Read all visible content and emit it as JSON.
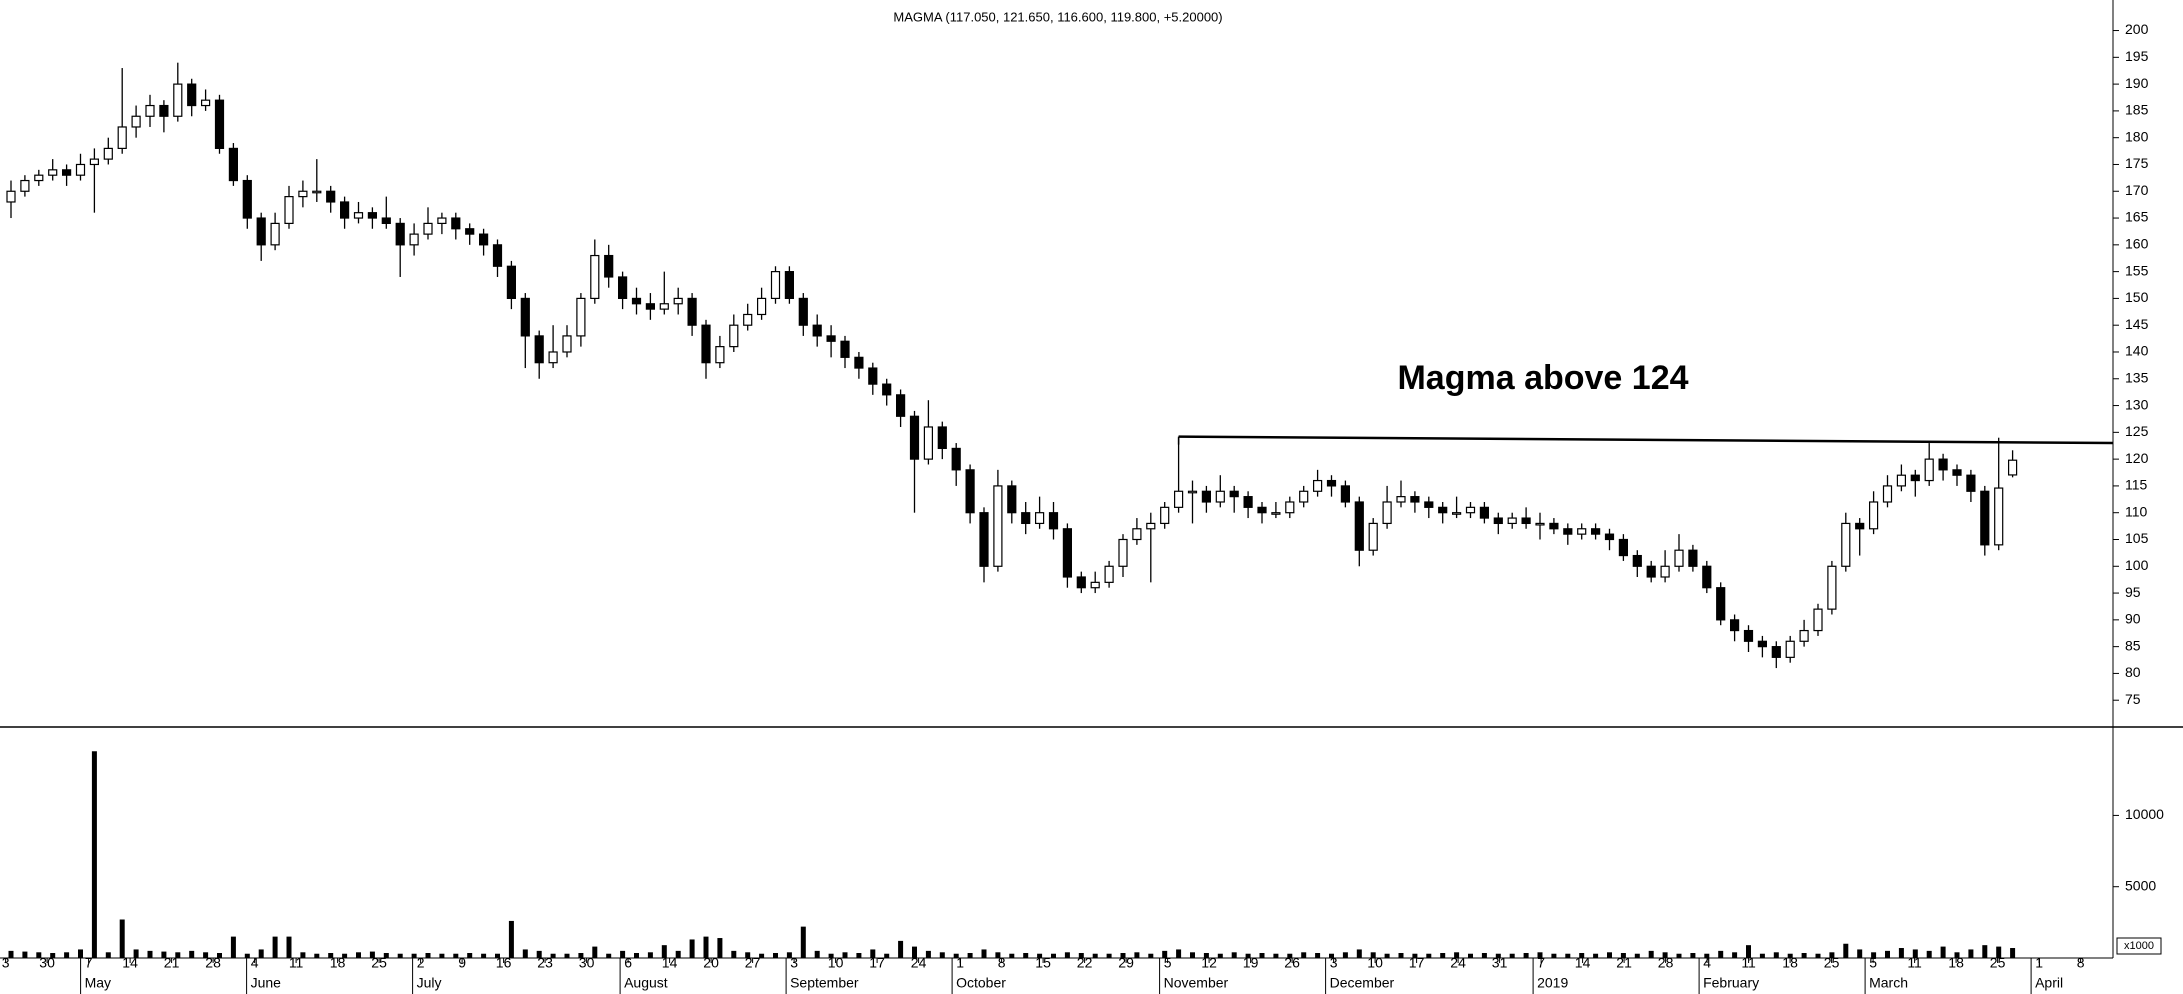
{
  "chart_data": {
    "type": "candlestick",
    "title": "MAGMA (117.050, 121.650, 116.600, 119.800, +5.20000)",
    "annotation": "Magma above 124",
    "ylim": [
      70,
      205.7
    ],
    "yticks": [
      75,
      80,
      85,
      90,
      95,
      100,
      105,
      110,
      115,
      120,
      125,
      130,
      135,
      140,
      145,
      150,
      155,
      160,
      165,
      170,
      175,
      180,
      185,
      190,
      195,
      200
    ],
    "y2lim": [
      0,
      15500
    ],
    "y2ticks": [
      5000,
      10000
    ],
    "volume_unit": "x1000",
    "xticks": [
      "3",
      "30",
      "7",
      "14",
      "21",
      "28",
      "4",
      "11",
      "18",
      "25",
      "2",
      "9",
      "16",
      "23",
      "30",
      "6",
      "14",
      "20",
      "27",
      "3",
      "10",
      "17",
      "24",
      "1",
      "8",
      "15",
      "22",
      "29",
      "5",
      "12",
      "19",
      "26",
      "3",
      "10",
      "17",
      "24",
      "31",
      "7",
      "14",
      "21",
      "28",
      "4",
      "11",
      "18",
      "25",
      "5",
      "11",
      "18",
      "25",
      "1",
      "8"
    ],
    "months": [
      "May",
      "June",
      "July",
      "August",
      "September",
      "October",
      "November",
      "December",
      "2019",
      "February",
      "March",
      "April"
    ],
    "trendline": {
      "start": 84,
      "values": [
        124.2,
        123
      ]
    },
    "ohlc": [
      [
        168,
        172,
        165,
        170
      ],
      [
        170,
        173,
        169,
        172
      ],
      [
        172,
        174,
        171,
        173
      ],
      [
        173,
        176,
        172,
        174
      ],
      [
        174,
        175,
        171,
        173
      ],
      [
        173,
        177,
        172,
        175
      ],
      [
        175,
        178,
        166,
        176
      ],
      [
        176,
        180,
        175,
        178
      ],
      [
        178,
        193,
        177,
        182
      ],
      [
        182,
        186,
        180,
        184
      ],
      [
        184,
        188,
        182,
        186
      ],
      [
        186,
        187,
        181,
        184
      ],
      [
        184,
        194,
        183,
        190
      ],
      [
        190,
        191,
        184,
        186
      ],
      [
        186,
        189,
        185,
        187
      ],
      [
        187,
        188,
        177,
        178
      ],
      [
        178,
        179,
        171,
        172
      ],
      [
        172,
        173,
        163,
        165
      ],
      [
        165,
        166,
        157,
        160
      ],
      [
        160,
        166,
        159,
        164
      ],
      [
        164,
        171,
        163,
        169
      ],
      [
        169,
        172,
        167,
        170
      ],
      [
        170,
        176,
        168,
        170
      ],
      [
        170,
        171,
        166,
        168
      ],
      [
        168,
        169,
        163,
        165
      ],
      [
        165,
        168,
        164,
        166
      ],
      [
        166,
        167,
        163,
        165
      ],
      [
        165,
        169,
        163,
        164
      ],
      [
        164,
        165,
        154,
        160
      ],
      [
        160,
        164,
        158,
        162
      ],
      [
        162,
        167,
        161,
        164
      ],
      [
        164,
        166,
        162,
        165
      ],
      [
        165,
        166,
        161,
        163
      ],
      [
        163,
        164,
        160,
        162
      ],
      [
        162,
        163,
        158,
        160
      ],
      [
        160,
        161,
        154,
        156
      ],
      [
        156,
        157,
        148,
        150
      ],
      [
        150,
        151,
        137,
        143
      ],
      [
        143,
        144,
        135,
        138
      ],
      [
        138,
        145,
        137,
        140
      ],
      [
        140,
        145,
        139,
        143
      ],
      [
        143,
        151,
        141,
        150
      ],
      [
        150,
        161,
        149,
        158
      ],
      [
        158,
        160,
        152,
        154
      ],
      [
        154,
        155,
        148,
        150
      ],
      [
        150,
        152,
        147,
        149
      ],
      [
        149,
        151,
        146,
        148
      ],
      [
        148,
        155,
        147,
        149
      ],
      [
        149,
        152,
        147,
        150
      ],
      [
        150,
        151,
        143,
        145
      ],
      [
        145,
        146,
        135,
        138
      ],
      [
        138,
        143,
        137,
        141
      ],
      [
        141,
        147,
        140,
        145
      ],
      [
        145,
        149,
        144,
        147
      ],
      [
        147,
        152,
        146,
        150
      ],
      [
        150,
        156,
        149,
        155
      ],
      [
        155,
        156,
        149,
        150
      ],
      [
        150,
        151,
        143,
        145
      ],
      [
        145,
        147,
        141,
        143
      ],
      [
        143,
        145,
        139,
        142
      ],
      [
        142,
        143,
        137,
        139
      ],
      [
        139,
        140,
        135,
        137
      ],
      [
        137,
        138,
        132,
        134
      ],
      [
        134,
        135,
        130,
        132
      ],
      [
        132,
        133,
        126,
        128
      ],
      [
        128,
        129,
        110,
        120
      ],
      [
        120,
        131,
        119,
        126
      ],
      [
        126,
        127,
        120,
        122
      ],
      [
        122,
        123,
        115,
        118
      ],
      [
        118,
        119,
        108,
        110
      ],
      [
        110,
        111,
        97,
        100
      ],
      [
        100,
        118,
        99,
        115
      ],
      [
        115,
        116,
        108,
        110
      ],
      [
        110,
        112,
        106,
        108
      ],
      [
        108,
        113,
        107,
        110
      ],
      [
        110,
        112,
        105,
        107
      ],
      [
        107,
        108,
        96,
        98
      ],
      [
        98,
        99,
        95,
        96
      ],
      [
        96,
        99,
        95,
        97
      ],
      [
        97,
        101,
        96,
        100
      ],
      [
        100,
        106,
        98,
        105
      ],
      [
        105,
        109,
        104,
        107
      ],
      [
        107,
        110,
        97,
        108
      ],
      [
        108,
        112,
        107,
        111
      ],
      [
        111,
        124,
        110,
        114
      ],
      [
        114,
        116,
        108,
        114
      ],
      [
        114,
        115,
        110,
        112
      ],
      [
        112,
        117,
        111,
        114
      ],
      [
        114,
        115,
        110,
        113
      ],
      [
        113,
        114,
        109,
        111
      ],
      [
        111,
        112,
        108,
        110
      ],
      [
        110,
        112,
        109,
        110
      ],
      [
        110,
        113,
        109,
        112
      ],
      [
        112,
        115,
        111,
        114
      ],
      [
        114,
        118,
        113,
        116
      ],
      [
        116,
        117,
        113,
        115
      ],
      [
        115,
        116,
        111,
        112
      ],
      [
        112,
        113,
        100,
        103
      ],
      [
        103,
        109,
        102,
        108
      ],
      [
        108,
        115,
        107,
        112
      ],
      [
        112,
        116,
        111,
        113
      ],
      [
        113,
        114,
        110,
        112
      ],
      [
        112,
        113,
        109,
        111
      ],
      [
        111,
        112,
        108,
        110
      ],
      [
        110,
        113,
        109,
        110
      ],
      [
        110,
        112,
        109,
        111
      ],
      [
        111,
        112,
        108,
        109
      ],
      [
        109,
        110,
        106,
        108
      ],
      [
        108,
        110,
        107,
        109
      ],
      [
        109,
        111,
        107,
        108
      ],
      [
        108,
        110,
        105,
        108
      ],
      [
        108,
        109,
        106,
        107
      ],
      [
        107,
        108,
        104,
        106
      ],
      [
        106,
        108,
        105,
        107
      ],
      [
        107,
        108,
        105,
        106
      ],
      [
        106,
        107,
        103,
        105
      ],
      [
        105,
        106,
        101,
        102
      ],
      [
        102,
        103,
        98,
        100
      ],
      [
        100,
        101,
        97,
        98
      ],
      [
        98,
        103,
        97,
        100
      ],
      [
        100,
        106,
        99,
        103
      ],
      [
        103,
        104,
        99,
        100
      ],
      [
        100,
        101,
        95,
        96
      ],
      [
        96,
        97,
        89,
        90
      ],
      [
        90,
        91,
        86,
        88
      ],
      [
        88,
        89,
        84,
        86
      ],
      [
        86,
        87,
        83,
        85
      ],
      [
        85,
        86,
        81,
        83
      ],
      [
        83,
        87,
        82,
        86
      ],
      [
        86,
        90,
        85,
        88
      ],
      [
        88,
        93,
        87,
        92
      ],
      [
        92,
        101,
        91,
        100
      ],
      [
        100,
        110,
        99,
        108
      ],
      [
        108,
        109,
        102,
        107
      ],
      [
        107,
        114,
        106,
        112
      ],
      [
        112,
        117,
        111,
        115
      ],
      [
        115,
        119,
        114,
        117
      ],
      [
        117,
        118,
        113,
        116
      ],
      [
        116,
        123,
        115,
        120
      ],
      [
        120,
        121,
        116,
        118
      ],
      [
        118,
        119,
        115,
        117
      ],
      [
        117,
        118,
        112,
        114
      ],
      [
        114,
        115,
        102,
        104
      ],
      [
        104,
        124,
        103,
        114.6
      ],
      [
        117.05,
        121.65,
        116.6,
        119.8
      ]
    ],
    "volume": [
      500,
      450,
      400,
      350,
      400,
      600,
      14500,
      400,
      2700,
      600,
      500,
      450,
      400,
      500,
      400,
      350,
      1500,
      300,
      600,
      1500,
      1500,
      400,
      300,
      350,
      300,
      400,
      450,
      350,
      300,
      300,
      350,
      300,
      300,
      350,
      300,
      300,
      2600,
      600,
      500,
      300,
      300,
      350,
      800,
      300,
      500,
      350,
      400,
      900,
      500,
      1300,
      1500,
      1400,
      500,
      400,
      300,
      350,
      400,
      2200,
      500,
      300,
      400,
      350,
      600,
      300,
      1200,
      800,
      500,
      400,
      300,
      350,
      600,
      400,
      300,
      350,
      300,
      300,
      400,
      350,
      300,
      300,
      350,
      400,
      300,
      500,
      600,
      400,
      350,
      300,
      400,
      300,
      350,
      300,
      300,
      400,
      350,
      300,
      400,
      600,
      400,
      300,
      350,
      300,
      300,
      350,
      400,
      300,
      350,
      300,
      300,
      350,
      400,
      300,
      300,
      350,
      300,
      400,
      350,
      300,
      500,
      400,
      300,
      350,
      300,
      500,
      400,
      900,
      300,
      400,
      300,
      350,
      300,
      400,
      1000,
      600,
      400,
      500,
      700,
      600,
      500,
      800,
      400,
      600,
      900,
      800,
      700
    ]
  }
}
